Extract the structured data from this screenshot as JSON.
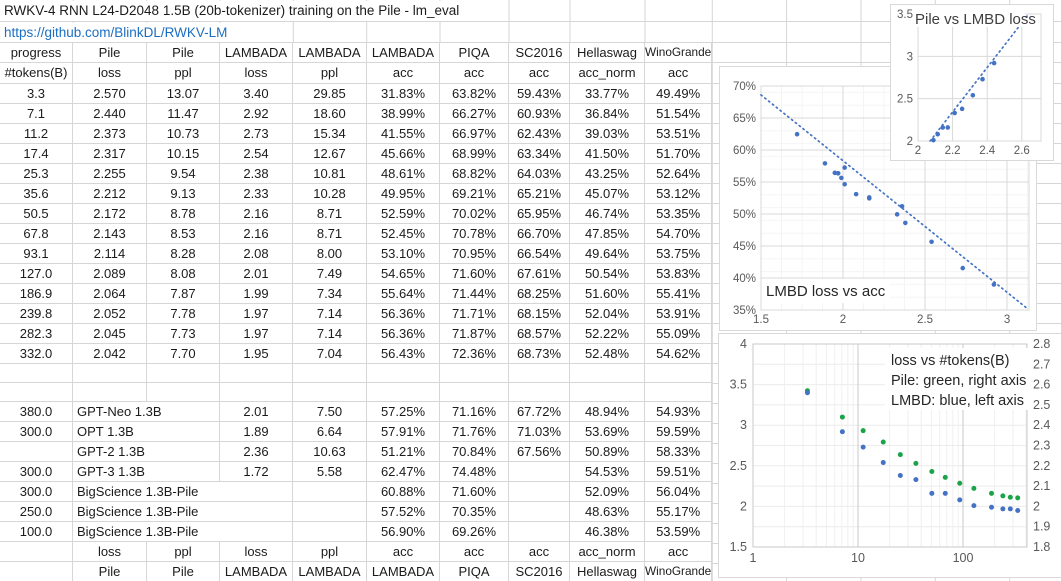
{
  "sheet": {
    "title": "RWKV-4 RNN L24-D2048 1.5B (20b-tokenizer) training on the Pile - lm_eval",
    "link": "https://github.com/BlinkDL/RWKV-LM"
  },
  "colors": {
    "marker_blue": "#4472C4",
    "marker_green": "#1AA348",
    "link_blue": "#1B6FC2",
    "sheet_gridline": "#D6D6D6",
    "chart_gridline": "#D9D9D9",
    "tick_text": "#595959",
    "cell_text": "#1B1B1B"
  },
  "table": {
    "header_row1": [
      "progress",
      "Pile",
      "Pile",
      "LAMBADA",
      "LAMBADA",
      "LAMBADA",
      "PIQA",
      "SC2016",
      "Hellaswag",
      "WinoGrande"
    ],
    "header_row2": [
      "#tokens(B)",
      "loss",
      "ppl",
      "loss",
      "ppl",
      "acc",
      "acc",
      "acc",
      "acc_norm",
      "acc"
    ],
    "rows": [
      [
        "3.3",
        "2.570",
        "13.07",
        "3.40",
        "29.85",
        "31.83%",
        "63.82%",
        "59.43%",
        "33.77%",
        "49.49%"
      ],
      [
        "7.1",
        "2.440",
        "11.47",
        "2.92",
        "18.60",
        "38.99%",
        "66.27%",
        "60.93%",
        "36.84%",
        "51.54%"
      ],
      [
        "11.2",
        "2.373",
        "10.73",
        "2.73",
        "15.34",
        "41.55%",
        "66.97%",
        "62.43%",
        "39.03%",
        "53.51%"
      ],
      [
        "17.4",
        "2.317",
        "10.15",
        "2.54",
        "12.67",
        "45.66%",
        "68.99%",
        "63.34%",
        "41.50%",
        "51.70%"
      ],
      [
        "25.3",
        "2.255",
        "9.54",
        "2.38",
        "10.81",
        "48.61%",
        "68.82%",
        "64.03%",
        "43.25%",
        "52.64%"
      ],
      [
        "35.6",
        "2.212",
        "9.13",
        "2.33",
        "10.28",
        "49.95%",
        "69.21%",
        "65.21%",
        "45.07%",
        "53.12%"
      ],
      [
        "50.5",
        "2.172",
        "8.78",
        "2.16",
        "8.71",
        "52.59%",
        "70.02%",
        "65.95%",
        "46.74%",
        "53.35%"
      ],
      [
        "67.8",
        "2.143",
        "8.53",
        "2.16",
        "8.71",
        "52.45%",
        "70.78%",
        "66.70%",
        "47.85%",
        "54.70%"
      ],
      [
        "93.1",
        "2.114",
        "8.28",
        "2.08",
        "8.00",
        "53.10%",
        "70.95%",
        "66.54%",
        "49.64%",
        "53.75%"
      ],
      [
        "127.0",
        "2.089",
        "8.08",
        "2.01",
        "7.49",
        "54.65%",
        "71.60%",
        "67.61%",
        "50.54%",
        "53.83%"
      ],
      [
        "186.9",
        "2.064",
        "7.87",
        "1.99",
        "7.34",
        "55.64%",
        "71.44%",
        "68.25%",
        "51.60%",
        "55.41%"
      ],
      [
        "239.8",
        "2.052",
        "7.78",
        "1.97",
        "7.14",
        "56.36%",
        "71.71%",
        "68.15%",
        "52.04%",
        "53.91%"
      ],
      [
        "282.3",
        "2.045",
        "7.73",
        "1.97",
        "7.14",
        "56.36%",
        "71.87%",
        "68.57%",
        "52.22%",
        "55.09%"
      ],
      [
        "332.0",
        "2.042",
        "7.70",
        "1.95",
        "7.04",
        "56.43%",
        "72.36%",
        "68.73%",
        "52.48%",
        "54.62%"
      ]
    ],
    "comparison_rows": [
      {
        "tokens": "380.0",
        "model": "GPT-Neo 1.3B",
        "span": 2,
        "values": [
          "2.01",
          "7.50",
          "57.25%",
          "71.16%",
          "67.72%",
          "48.94%",
          "54.93%"
        ]
      },
      {
        "tokens": "300.0",
        "model": "OPT 1.3B",
        "span": 2,
        "values": [
          "1.89",
          "6.64",
          "57.91%",
          "71.76%",
          "71.03%",
          "53.69%",
          "59.59%"
        ]
      },
      {
        "tokens": "",
        "model": "GPT-2 1.3B",
        "span": 2,
        "values": [
          "2.36",
          "10.63",
          "51.21%",
          "70.84%",
          "67.56%",
          "50.89%",
          "58.33%"
        ]
      },
      {
        "tokens": "300.0",
        "model": "GPT-3 1.3B",
        "span": 2,
        "values": [
          "1.72",
          "5.58",
          "62.47%",
          "74.48%",
          "",
          "54.53%",
          "59.51%"
        ]
      },
      {
        "tokens": "300.0",
        "model": "BigScience 1.3B-Pile",
        "span": 3,
        "values": [
          "",
          "60.88%",
          "71.60%",
          "",
          "52.09%",
          "56.04%"
        ]
      },
      {
        "tokens": "250.0",
        "model": "BigScience 1.3B-Pile",
        "span": 3,
        "values": [
          "",
          "57.52%",
          "70.35%",
          "",
          "48.63%",
          "55.17%"
        ]
      },
      {
        "tokens": "100.0",
        "model": "BigScience 1.3B-Pile",
        "span": 3,
        "values": [
          "",
          "56.90%",
          "69.26%",
          "",
          "46.38%",
          "53.59%"
        ]
      }
    ],
    "footer_row1": [
      "",
      "loss",
      "ppl",
      "loss",
      "ppl",
      "acc",
      "acc",
      "acc",
      "acc_norm",
      "acc"
    ],
    "footer_row2": [
      "",
      "Pile",
      "Pile",
      "LAMBADA",
      "LAMBADA",
      "LAMBADA",
      "PIQA",
      "SC2016",
      "Hellaswag",
      "WinoGrande"
    ]
  },
  "chart_data": [
    {
      "type": "scatter",
      "title": "Pile vs LMBD loss",
      "xlabel": "Pile loss",
      "ylabel": "LAMBADA loss",
      "xlim": [
        2.0,
        2.711
      ],
      "ylim": [
        2.0,
        3.5
      ],
      "xticks": [
        "2",
        "2.2",
        "2.4",
        "2.6"
      ],
      "xtick_values": [
        2,
        2.2,
        2.4,
        2.6
      ],
      "yticks": [
        "2",
        "2.5",
        "3",
        "3.5"
      ],
      "ytick_values": [
        2,
        2.5,
        3,
        3.5
      ],
      "points_x": [
        2.57,
        2.44,
        2.373,
        2.317,
        2.255,
        2.212,
        2.172,
        2.143,
        2.114,
        2.089,
        2.064,
        2.052,
        2.045,
        2.042
      ],
      "points_y": [
        3.4,
        2.92,
        2.73,
        2.54,
        2.38,
        2.33,
        2.16,
        2.16,
        2.08,
        2.01,
        1.99,
        1.97,
        1.97,
        1.95
      ],
      "trendline": {
        "x1": 2.07,
        "y1": 2.0,
        "x2": 2.64,
        "y2": 3.5,
        "style": "dotted"
      },
      "marker_color": "#4472C4",
      "grid": true,
      "legend": "none"
    },
    {
      "type": "scatter",
      "title": "LMBD loss vs acc",
      "xlabel": "LAMBADA loss",
      "ylabel": "LAMBADA acc (%)",
      "xlim": [
        1.5,
        3.134
      ],
      "ylim": [
        35,
        70
      ],
      "xticks": [
        "1.5",
        "2",
        "2.5",
        "3"
      ],
      "xtick_values": [
        1.5,
        2,
        2.5,
        3
      ],
      "yticks": [
        "35%",
        "40%",
        "45%",
        "50%",
        "55%",
        "60%",
        "65%",
        "70%"
      ],
      "ytick_values": [
        35,
        40,
        45,
        50,
        55,
        60,
        65,
        70
      ],
      "points_x": [
        3.4,
        2.92,
        2.73,
        2.54,
        2.38,
        2.33,
        2.16,
        2.16,
        2.08,
        2.01,
        1.99,
        1.97,
        1.97,
        1.95,
        2.01,
        1.89,
        2.36,
        1.72
      ],
      "points_y": [
        31.83,
        38.99,
        41.55,
        45.66,
        48.61,
        49.95,
        52.59,
        52.45,
        53.1,
        54.65,
        55.64,
        56.36,
        56.36,
        56.43,
        57.25,
        57.91,
        51.21,
        62.47
      ],
      "trendline": {
        "x1": 1.5,
        "y1": 68.6,
        "x2": 3.13,
        "y2": 35.1,
        "style": "dotted"
      },
      "marker_color": "#4472C4",
      "grid": true,
      "legend": "none"
    },
    {
      "type": "scatter",
      "title": "loss vs #tokens(B)",
      "annotation_lines": [
        "loss vs #tokens(B)",
        "Pile: green, right axis",
        "LMBD: blue, left axis"
      ],
      "x_scale": "log",
      "xlim": [
        1,
        407
      ],
      "xticks": [
        "1",
        "10",
        "100"
      ],
      "xtick_values": [
        1,
        10,
        100
      ],
      "x": [
        3.3,
        7.1,
        11.2,
        17.4,
        25.3,
        35.6,
        50.5,
        67.8,
        93.1,
        127.0,
        186.9,
        239.8,
        282.3,
        332.0
      ],
      "series": [
        {
          "name": "Pile",
          "axis": "right",
          "color": "#1AA348",
          "values": [
            2.57,
            2.44,
            2.373,
            2.317,
            2.255,
            2.212,
            2.172,
            2.143,
            2.114,
            2.089,
            2.064,
            2.052,
            2.045,
            2.042
          ]
        },
        {
          "name": "LMBD",
          "axis": "left",
          "color": "#4472C4",
          "values": [
            3.4,
            2.92,
            2.73,
            2.54,
            2.38,
            2.33,
            2.16,
            2.16,
            2.08,
            2.01,
            1.99,
            1.97,
            1.97,
            1.95
          ]
        }
      ],
      "ylim_left": [
        1.5,
        4
      ],
      "yticks_left": [
        "1.5",
        "2",
        "2.5",
        "3",
        "3.5",
        "4"
      ],
      "ytick_values_left": [
        1.5,
        2,
        2.5,
        3,
        3.5,
        4
      ],
      "ylim_right": [
        1.8,
        2.8
      ],
      "yticks_right": [
        "1.8",
        "1.9",
        "2",
        "2.1",
        "2.2",
        "2.3",
        "2.4",
        "2.5",
        "2.6",
        "2.7",
        "2.8"
      ],
      "ytick_values_right": [
        1.8,
        1.9,
        2.0,
        2.1,
        2.2,
        2.3,
        2.4,
        2.5,
        2.6,
        2.7,
        2.8
      ],
      "grid": true,
      "legend": "annotation-top-right"
    }
  ]
}
